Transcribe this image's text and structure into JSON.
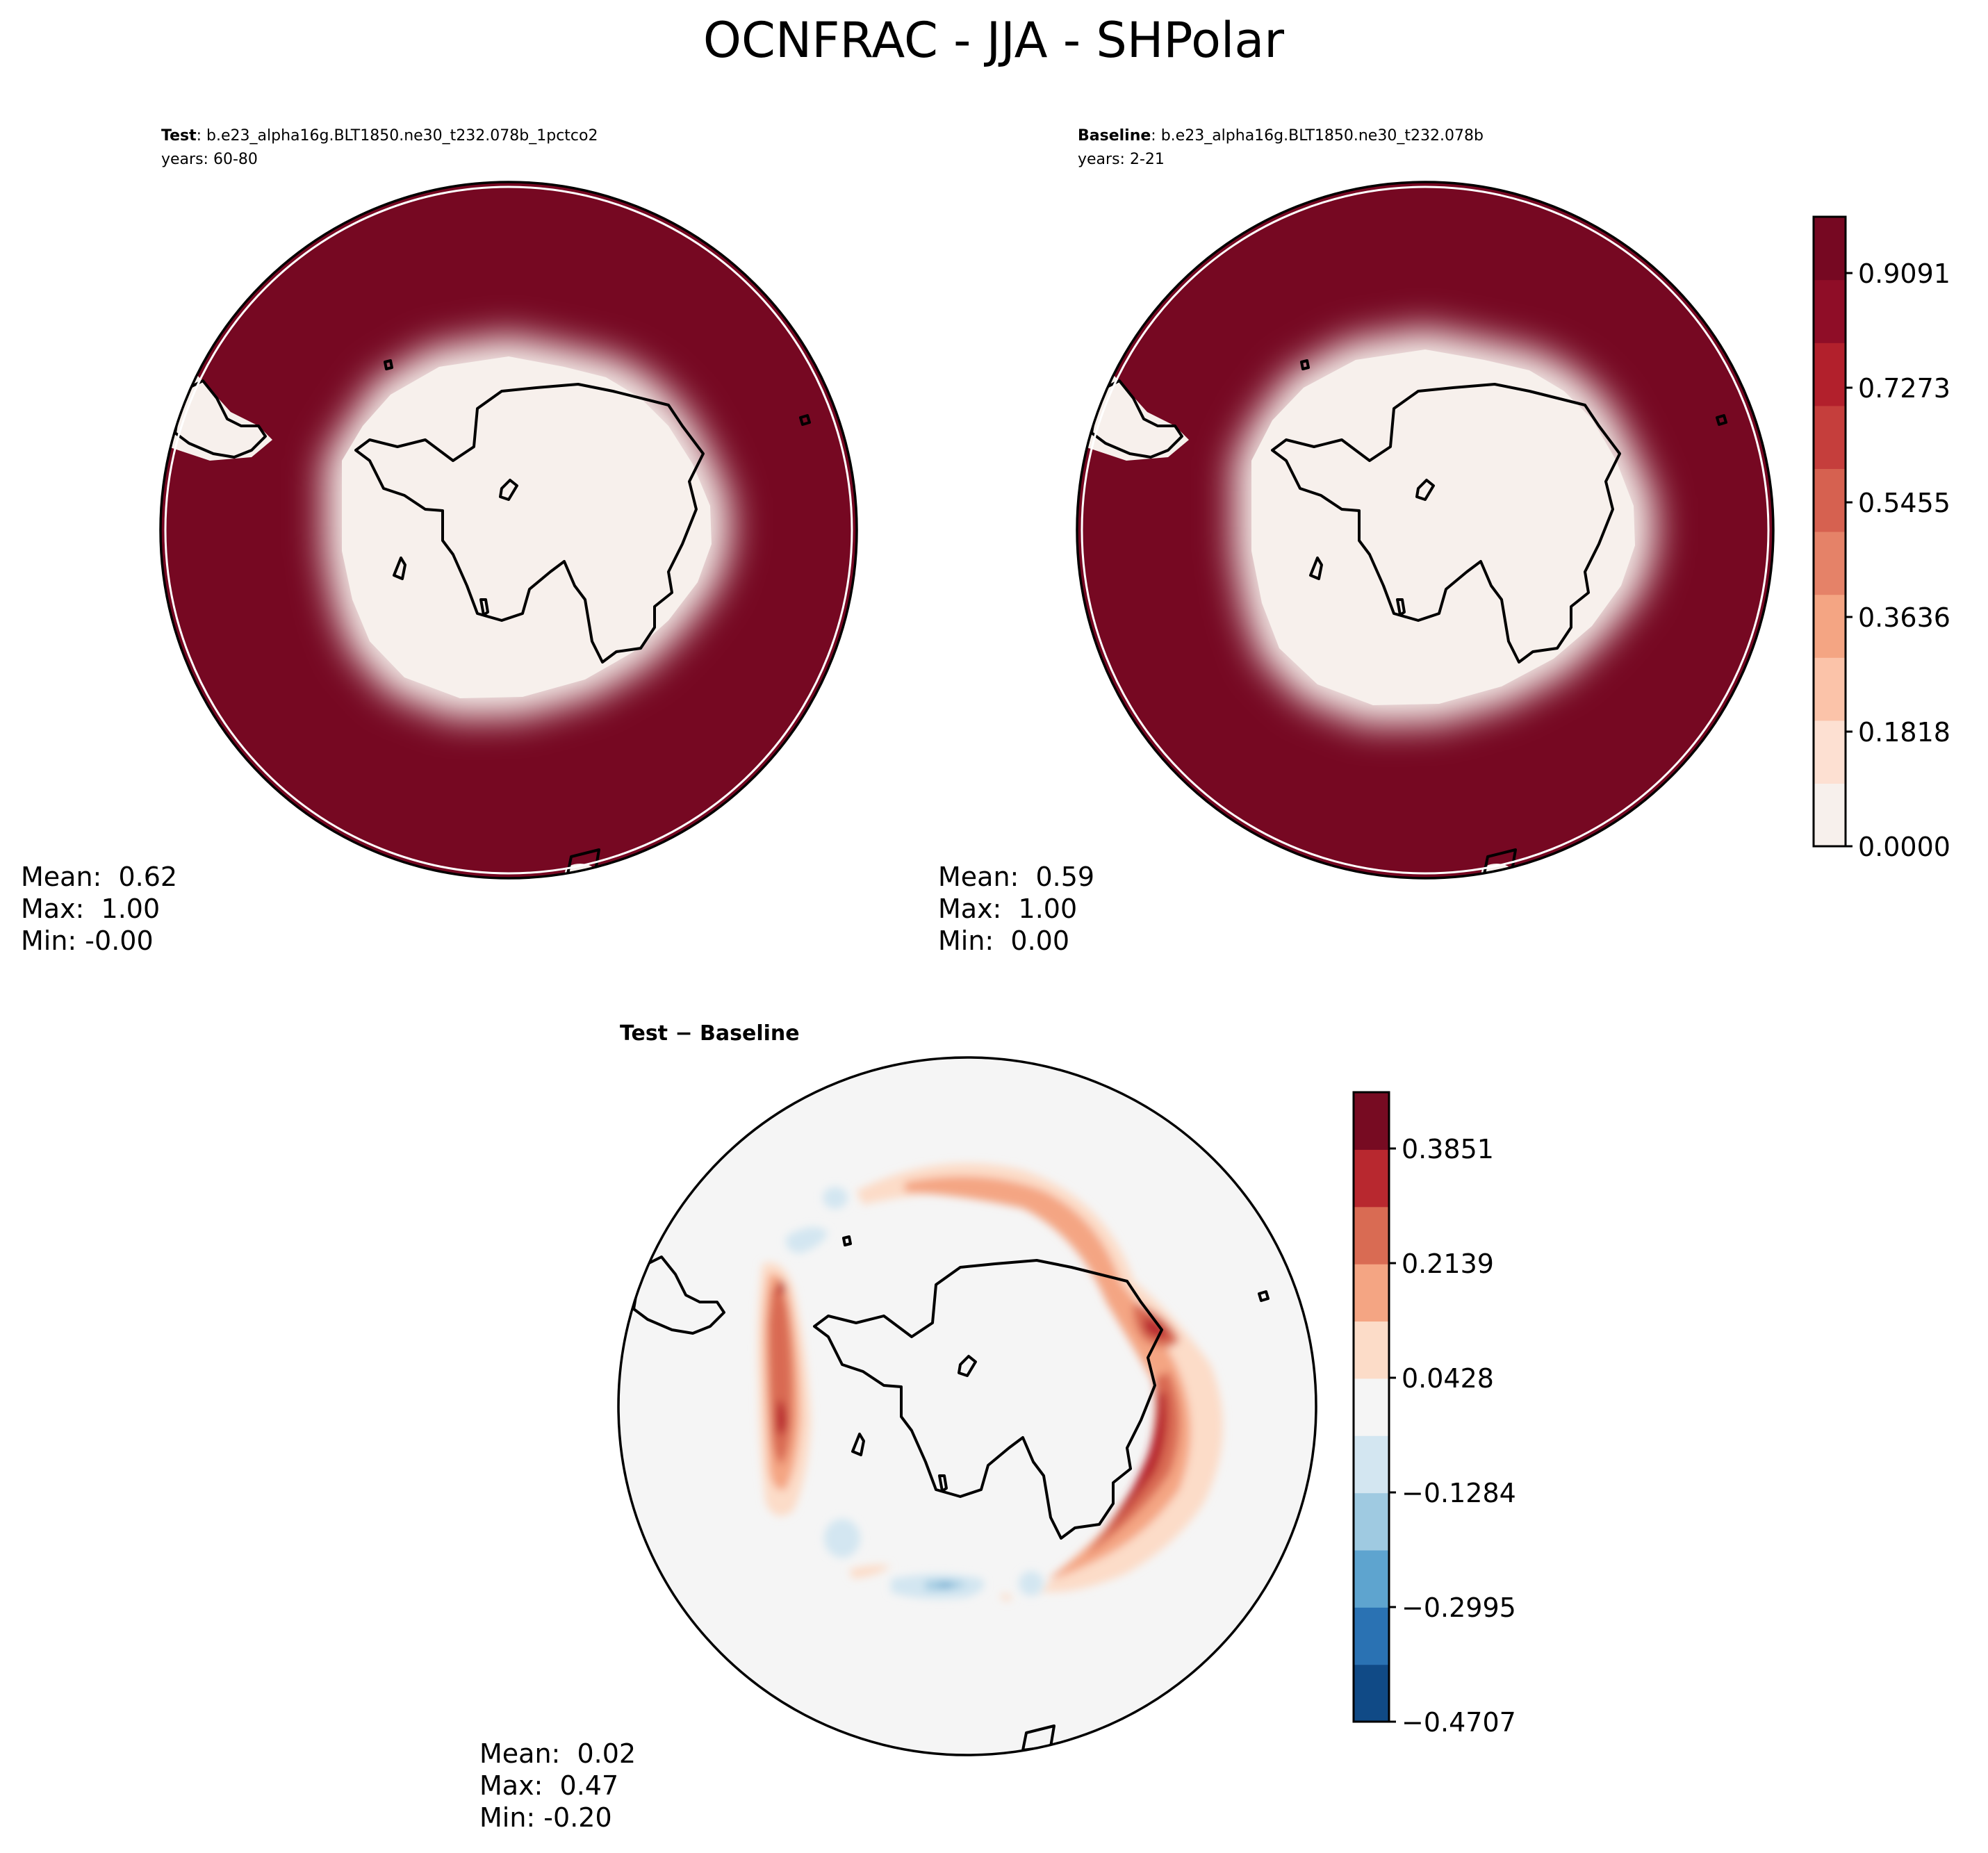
{
  "title": "OCNFRAC - JJA - SHPolar",
  "panels": {
    "test": {
      "label_bold": "Test",
      "label_rest": ": b.e23_alpha16g.BLT1850.ne30_t232.078b_1pctco2",
      "years": "years: 60-80",
      "mean": "Mean:  0.62",
      "max": "Max:  1.00",
      "min": "Min: -0.00"
    },
    "baseline": {
      "label_bold": "Baseline",
      "label_rest": ": b.e23_alpha16g.BLT1850.ne30_t232.078b",
      "years": "years: 2-21",
      "mean": "Mean:  0.59",
      "max": "Max:  1.00",
      "min": "Min:  0.00"
    },
    "diff": {
      "label": "Test − Baseline",
      "mean": "Mean:  0.02",
      "max": "Max:  0.47",
      "min": "Min: -0.20"
    }
  },
  "colorbar_main": {
    "ticks": [
      "0.0000",
      "0.1818",
      "0.3636",
      "0.5455",
      "0.7273",
      "0.9091"
    ],
    "colors": [
      "#f7f0ec",
      "#fde0d2",
      "#fbc3a9",
      "#f4a583",
      "#e58268",
      "#d66150",
      "#c53e3c",
      "#b2202c",
      "#8f0d27",
      "#760822"
    ]
  },
  "colorbar_diff": {
    "ticks": [
      "−0.4707",
      "−0.2995",
      "−0.1284",
      "0.0428",
      "0.2139",
      "0.3851"
    ],
    "colors": [
      "#104a86",
      "#2a72b3",
      "#5ea4cf",
      "#9fcae1",
      "#d3e6f1",
      "#f5f5f5",
      "#fcdcc8",
      "#f4a583",
      "#d96b53",
      "#b8282f",
      "#770b22"
    ]
  }
}
